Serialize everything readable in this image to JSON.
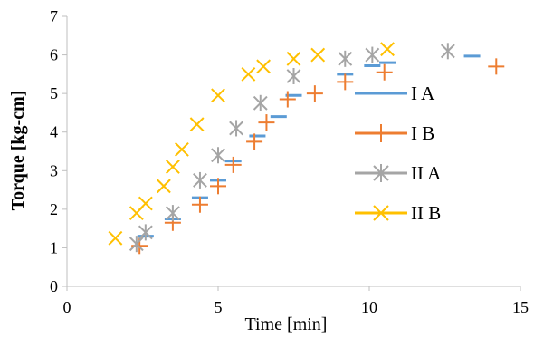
{
  "chart_data": {
    "type": "scatter",
    "xlabel": "Time [min]",
    "ylabel": "Torque [kg-cm]",
    "xlim": [
      0,
      15
    ],
    "ylim": [
      0,
      7
    ],
    "xticks": [
      "0",
      "5",
      "10",
      "15"
    ],
    "yticks": [
      "0",
      "1",
      "2",
      "3",
      "4",
      "5",
      "6",
      "7"
    ],
    "grid": false,
    "legend_position": "right",
    "series": [
      {
        "name": "I A",
        "marker": "dash",
        "color": "#5B9BD5",
        "points": [
          [
            2.6,
            1.3
          ],
          [
            3.5,
            1.75
          ],
          [
            4.4,
            2.3
          ],
          [
            5.0,
            2.75
          ],
          [
            5.5,
            3.25
          ],
          [
            6.3,
            3.9
          ],
          [
            7.0,
            4.4
          ],
          [
            7.5,
            4.95
          ],
          [
            9.2,
            5.5
          ],
          [
            10.1,
            5.72
          ],
          [
            10.6,
            5.8
          ],
          [
            13.4,
            5.97
          ]
        ]
      },
      {
        "name": "I B",
        "marker": "plus",
        "color": "#ED7D31",
        "points": [
          [
            2.4,
            1.05
          ],
          [
            3.5,
            1.65
          ],
          [
            4.4,
            2.12
          ],
          [
            5.0,
            2.6
          ],
          [
            5.5,
            3.15
          ],
          [
            6.2,
            3.75
          ],
          [
            6.6,
            4.25
          ],
          [
            7.3,
            4.85
          ],
          [
            8.2,
            5.0
          ],
          [
            9.2,
            5.3
          ],
          [
            10.5,
            5.55
          ],
          [
            14.2,
            5.7
          ]
        ]
      },
      {
        "name": "II A",
        "marker": "asterisk",
        "color": "#A5A5A5",
        "points": [
          [
            2.3,
            1.1
          ],
          [
            2.6,
            1.4
          ],
          [
            3.5,
            1.9
          ],
          [
            4.4,
            2.75
          ],
          [
            5.0,
            3.4
          ],
          [
            5.6,
            4.1
          ],
          [
            6.4,
            4.75
          ],
          [
            7.5,
            5.45
          ],
          [
            9.2,
            5.9
          ],
          [
            10.1,
            6.0
          ],
          [
            12.6,
            6.1
          ]
        ]
      },
      {
        "name": "II B",
        "marker": "x",
        "color": "#FFC000",
        "points": [
          [
            1.6,
            1.25
          ],
          [
            2.3,
            1.9
          ],
          [
            2.6,
            2.15
          ],
          [
            3.2,
            2.6
          ],
          [
            3.5,
            3.1
          ],
          [
            3.8,
            3.55
          ],
          [
            4.3,
            4.2
          ],
          [
            5.0,
            4.95
          ],
          [
            6.0,
            5.5
          ],
          [
            6.5,
            5.7
          ],
          [
            7.5,
            5.9
          ],
          [
            8.3,
            6.0
          ],
          [
            10.6,
            6.15
          ]
        ]
      }
    ]
  }
}
